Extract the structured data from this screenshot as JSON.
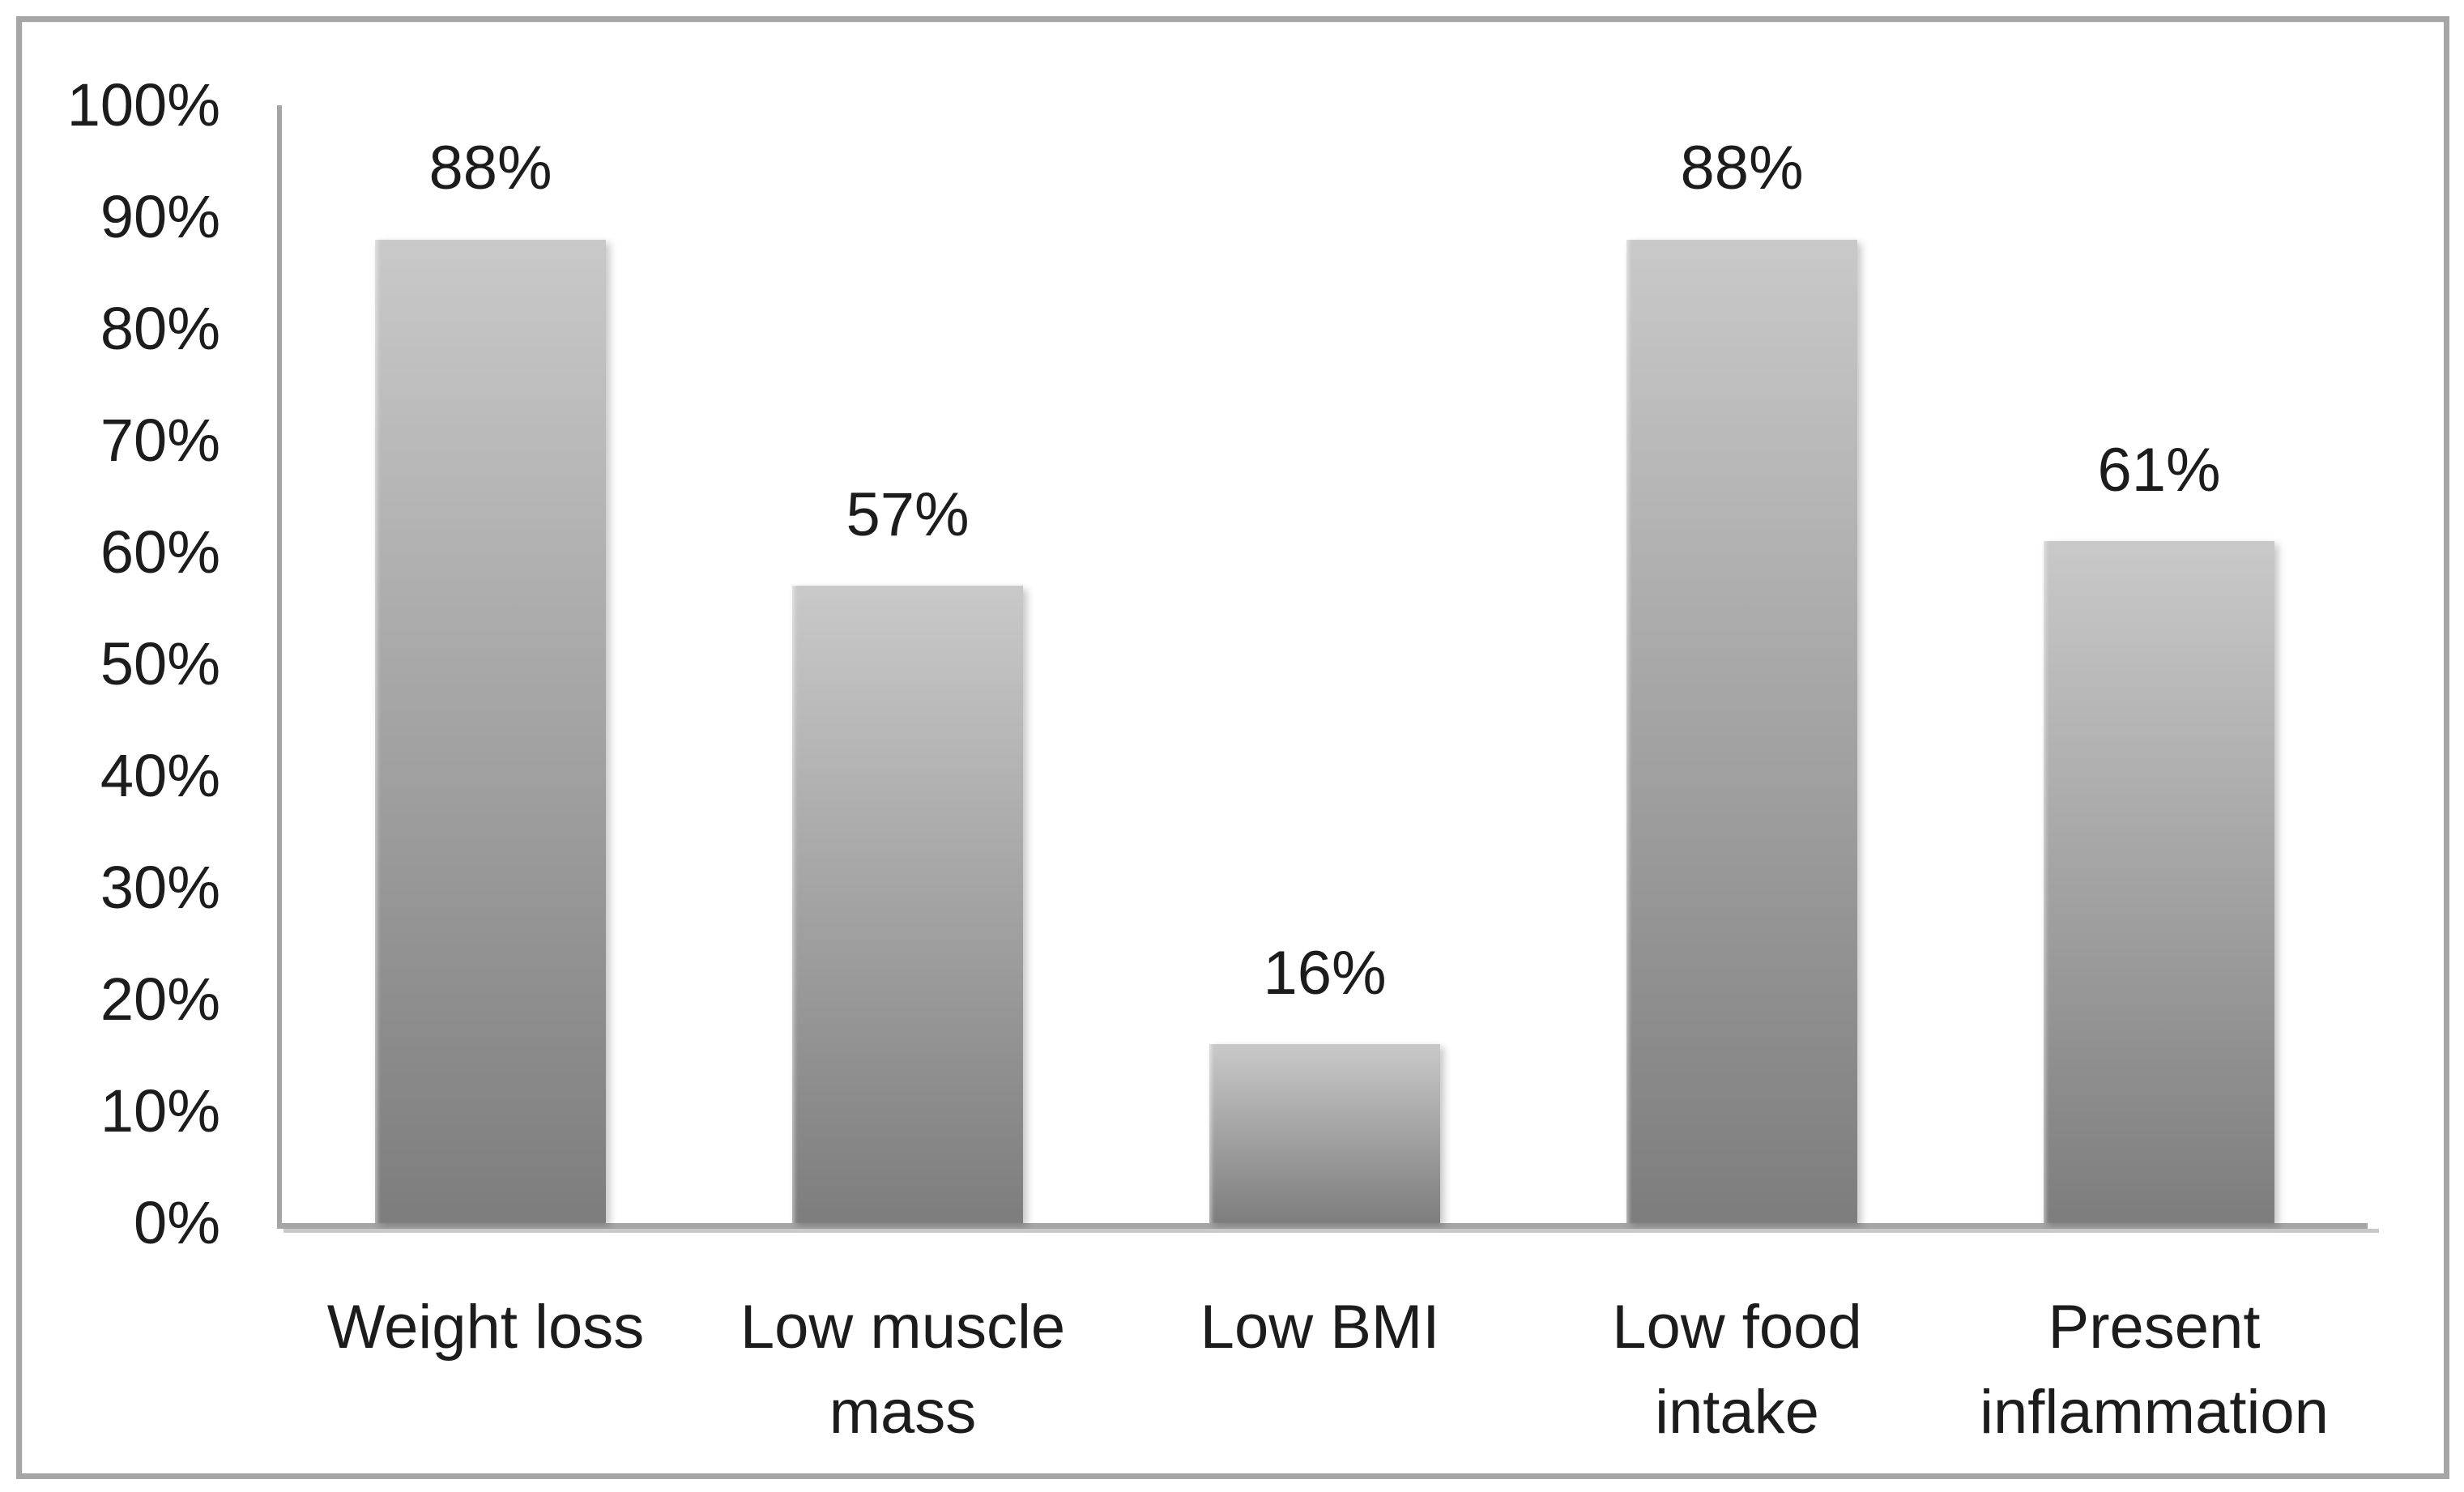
{
  "chart_data": {
    "type": "bar",
    "title": "",
    "xlabel": "",
    "ylabel": "",
    "ylim": [
      0,
      100
    ],
    "grid": false,
    "legend": false,
    "categories": [
      "Weight loss",
      "Low muscle mass",
      "Low BMI",
      "Low food intake",
      "Present inflammation"
    ],
    "values": [
      88,
      57,
      16,
      88,
      61
    ],
    "points": [
      {
        "category": "Weight loss",
        "category_display": "Weight loss",
        "value": 88,
        "value_label": "88%"
      },
      {
        "category": "Low muscle mass",
        "category_display": "Low muscle\nmass",
        "value": 57,
        "value_label": "57%"
      },
      {
        "category": "Low BMI",
        "category_display": "Low BMI",
        "value": 16,
        "value_label": "16%"
      },
      {
        "category": "Low food intake",
        "category_display": "Low food\nintake",
        "value": 88,
        "value_label": "88%"
      },
      {
        "category": "Present inflammation",
        "category_display": "Present\ninflammation",
        "value": 61,
        "value_label": "61%"
      }
    ],
    "yticks": [
      {
        "value": 100,
        "label": "100%"
      },
      {
        "value": 90,
        "label": "90%"
      },
      {
        "value": 80,
        "label": "80%"
      },
      {
        "value": 70,
        "label": "70%"
      },
      {
        "value": 60,
        "label": "60%"
      },
      {
        "value": 50,
        "label": "50%"
      },
      {
        "value": 40,
        "label": "40%"
      },
      {
        "value": 30,
        "label": "30%"
      },
      {
        "value": 20,
        "label": "20%"
      },
      {
        "value": 10,
        "label": "10%"
      },
      {
        "value": 0,
        "label": "0%"
      }
    ],
    "colors": {
      "bar_top": "#c9c9c9",
      "bar_bottom": "#7d7d7d",
      "axis": "#a5a5a5",
      "axis_shadow": "#c9c9c9",
      "text": "#1c1c1c",
      "frame_border": "#a6a6a6",
      "background": "#ffffff"
    }
  }
}
